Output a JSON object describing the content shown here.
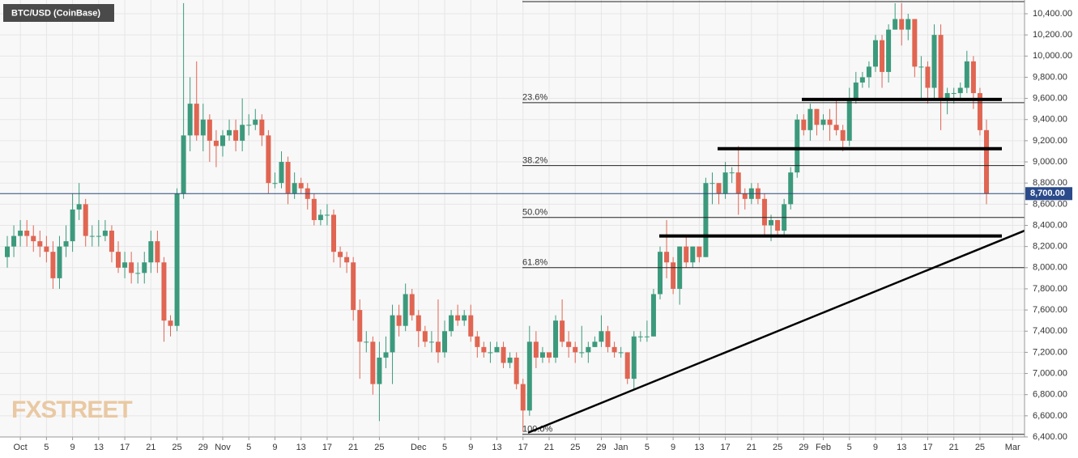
{
  "chart_data": {
    "type": "candlestick",
    "title": "BTC/USD (CoinBase)",
    "watermark": "FXSTREET",
    "up_color": "#3c9a7c",
    "down_color": "#e06552",
    "categories": [
      "Sep 29",
      "Sep 30",
      "Oct 1",
      "Oct 2",
      "Oct 3",
      "Oct 4",
      "Oct 5",
      "Oct 6",
      "Oct 7",
      "Oct 8",
      "Oct 9",
      "Oct 10",
      "Oct 11",
      "Oct 12",
      "Oct 13",
      "Oct 14",
      "Oct 15",
      "Oct 16",
      "Oct 17",
      "Oct 18",
      "Oct 19",
      "Oct 20",
      "Oct 21",
      "Oct 22",
      "Oct 23",
      "Oct 24",
      "Oct 25",
      "Oct 26",
      "Oct 27",
      "Oct 28",
      "Oct 29",
      "Oct 30",
      "Oct 31",
      "Nov 1",
      "Nov 2",
      "Nov 3",
      "Nov 4",
      "Nov 5",
      "Nov 6",
      "Nov 7",
      "Nov 8",
      "Nov 9",
      "Nov 10",
      "Nov 11",
      "Nov 12",
      "Nov 13",
      "Nov 14",
      "Nov 15",
      "Nov 16",
      "Nov 17",
      "Nov 18",
      "Nov 19",
      "Nov 20",
      "Nov 21",
      "Nov 22",
      "Nov 23",
      "Nov 24",
      "Nov 25",
      "Nov 26",
      "Nov 27",
      "Nov 28",
      "Nov 29",
      "Nov 30",
      "Dec 1",
      "Dec 2",
      "Dec 3",
      "Dec 4",
      "Dec 5",
      "Dec 6",
      "Dec 7",
      "Dec 8",
      "Dec 9",
      "Dec 10",
      "Dec 11",
      "Dec 12",
      "Dec 13",
      "Dec 14",
      "Dec 15",
      "Dec 16",
      "Dec 17",
      "Dec 18",
      "Dec 19",
      "Dec 20",
      "Dec 21",
      "Dec 22",
      "Dec 23",
      "Dec 24",
      "Dec 25",
      "Dec 26",
      "Dec 27",
      "Dec 28",
      "Dec 29",
      "Dec 30",
      "Dec 31",
      "Jan 1",
      "Jan 2",
      "Jan 3",
      "Jan 4",
      "Jan 5",
      "Jan 6",
      "Jan 7",
      "Jan 8",
      "Jan 9",
      "Jan 10",
      "Jan 11",
      "Jan 12",
      "Jan 13",
      "Jan 14",
      "Jan 15",
      "Jan 16",
      "Jan 17",
      "Jan 18",
      "Jan 19",
      "Jan 20",
      "Jan 21",
      "Jan 22",
      "Jan 23",
      "Jan 24",
      "Jan 25",
      "Jan 26",
      "Jan 27",
      "Jan 28",
      "Jan 29",
      "Jan 30",
      "Jan 31",
      "Feb 1",
      "Feb 2",
      "Feb 3",
      "Feb 4",
      "Feb 5",
      "Feb 6",
      "Feb 7",
      "Feb 8",
      "Feb 9",
      "Feb 10",
      "Feb 11",
      "Feb 12",
      "Feb 13",
      "Feb 14",
      "Feb 15",
      "Feb 16",
      "Feb 17",
      "Feb 18",
      "Feb 19",
      "Feb 20",
      "Feb 21",
      "Feb 22",
      "Feb 23",
      "Feb 24",
      "Feb 25",
      "Feb 26",
      "Feb 27",
      "Feb 28",
      "Feb 29",
      "Mar 1"
    ],
    "open": [
      8100,
      8200,
      8300,
      8350,
      8300,
      8250,
      8200,
      8150,
      7900,
      8200,
      8250,
      8550,
      8600,
      8300,
      8300,
      8300,
      8350,
      8150,
      8000,
      8050,
      7950,
      7950,
      8050,
      8250,
      8050,
      7500,
      7450,
      8700,
      9250,
      9550,
      9250,
      9400,
      9200,
      9150,
      9250,
      9300,
      9200,
      9350,
      9350,
      9400,
      9250,
      8800,
      8800,
      9000,
      8700,
      8800,
      8750,
      8650,
      8450,
      8500,
      8500,
      8150,
      8100,
      8050,
      7600,
      7300,
      7300,
      6900,
      7150,
      7200,
      7550,
      7450,
      7750,
      7550,
      7400,
      7300,
      7300,
      7200,
      7400,
      7550,
      7500,
      7550,
      7350,
      7250,
      7200,
      7200,
      7250,
      7100,
      7150,
      6900,
      6650,
      7300,
      7150,
      7200,
      7150,
      7500,
      7300,
      7250,
      7200,
      7200,
      7250,
      7300,
      7400,
      7250,
      7200,
      7200,
      6950,
      7350,
      7350,
      7350,
      7750,
      8150,
      8050,
      7800,
      8200,
      8050,
      8200,
      8100,
      8800,
      8800,
      8700,
      8900,
      8900,
      8700,
      8650,
      8750,
      8650,
      8400,
      8450,
      8350,
      8600,
      8900,
      9400,
      9300,
      9500,
      9350,
      9400,
      9350,
      9300,
      9200,
      9600,
      9750,
      9800,
      9900,
      10150,
      9850,
      10250,
      10350,
      10250,
      10350,
      9900,
      9900,
      9700,
      10200,
      9600,
      9650,
      9650,
      9700,
      9950,
      9650,
      9300,
      null,
      null,
      null,
      null
    ],
    "high": [
      8300,
      8400,
      8450,
      8450,
      8400,
      8350,
      8300,
      8250,
      8300,
      8400,
      8700,
      8800,
      8650,
      8400,
      8450,
      8450,
      8400,
      8250,
      8150,
      8150,
      8050,
      8150,
      8350,
      8350,
      8100,
      7550,
      8750,
      10500,
      9800,
      9950,
      9550,
      9450,
      9300,
      9300,
      9400,
      9400,
      9600,
      9450,
      9500,
      9450,
      9300,
      8900,
      9100,
      9050,
      8900,
      8850,
      8800,
      8700,
      8550,
      8600,
      8550,
      8200,
      8150,
      8100,
      7700,
      7400,
      7350,
      7300,
      7350,
      7650,
      7650,
      7850,
      7800,
      7600,
      7450,
      7400,
      7700,
      7500,
      7600,
      7650,
      7600,
      7650,
      7400,
      7300,
      7300,
      7300,
      7300,
      7200,
      7200,
      6950,
      7450,
      7400,
      7250,
      7200,
      7550,
      7700,
      7400,
      7300,
      7450,
      7300,
      7350,
      7550,
      7450,
      7300,
      7250,
      7200,
      7400,
      7400,
      7500,
      7800,
      8200,
      8450,
      8100,
      8200,
      8300,
      8200,
      8200,
      8850,
      8900,
      8800,
      9000,
      8950,
      9150,
      8750,
      8800,
      8800,
      8700,
      8500,
      8450,
      8650,
      8950,
      9450,
      9450,
      9550,
      9500,
      9450,
      9500,
      9600,
      9350,
      9700,
      9850,
      9850,
      9950,
      10200,
      10200,
      10300,
      10500,
      10500,
      10400,
      10350,
      10000,
      9950,
      10300,
      10300,
      9700,
      9700,
      9750,
      10050,
      10000,
      9700,
      9400,
      null,
      null,
      null,
      null
    ],
    "low": [
      8000,
      8100,
      8200,
      8200,
      8150,
      8100,
      8050,
      7800,
      7800,
      8100,
      8150,
      8450,
      8200,
      8200,
      8200,
      8250,
      8050,
      7950,
      7900,
      7850,
      7850,
      7850,
      7950,
      7950,
      7300,
      7350,
      7400,
      8650,
      9100,
      9200,
      9100,
      9000,
      8950,
      9050,
      9200,
      9100,
      9100,
      9250,
      9300,
      9150,
      8700,
      8750,
      8750,
      8600,
      8650,
      8700,
      8550,
      8400,
      8400,
      8400,
      8050,
      8000,
      7950,
      7500,
      6950,
      7200,
      6800,
      6550,
      7050,
      6900,
      7350,
      7400,
      7500,
      7250,
      7250,
      7200,
      7100,
      7150,
      7350,
      7450,
      7450,
      7300,
      7150,
      7150,
      7100,
      7200,
      7050,
      7050,
      6850,
      6450,
      6600,
      7050,
      7100,
      7100,
      7100,
      7250,
      7150,
      7100,
      7150,
      7100,
      7250,
      7250,
      7200,
      7150,
      7150,
      6900,
      6850,
      7300,
      7300,
      7350,
      7700,
      7900,
      7750,
      7650,
      8000,
      8000,
      8050,
      8100,
      8600,
      8600,
      8650,
      8800,
      8500,
      8550,
      8600,
      8600,
      8300,
      8250,
      8300,
      8300,
      8550,
      8850,
      9250,
      9200,
      9250,
      9300,
      9200,
      9250,
      9100,
      9150,
      9550,
      9700,
      9700,
      9850,
      9700,
      9750,
      10250,
      10100,
      10150,
      9800,
      9600,
      9550,
      9600,
      9300,
      9450,
      9550,
      9600,
      9650,
      9500,
      9250,
      8600,
      null,
      null,
      null,
      null
    ],
    "close": [
      8200,
      8300,
      8350,
      8300,
      8250,
      8200,
      8150,
      7900,
      8200,
      8250,
      8550,
      8600,
      8300,
      8300,
      8300,
      8350,
      8150,
      8000,
      8050,
      7950,
      7950,
      8050,
      8250,
      8050,
      7500,
      7450,
      8700,
      9250,
      9550,
      9250,
      9400,
      9200,
      9150,
      9250,
      9300,
      9200,
      9350,
      9350,
      9400,
      9250,
      8800,
      8800,
      9000,
      8700,
      8800,
      8750,
      8650,
      8450,
      8500,
      8500,
      8150,
      8100,
      8050,
      7600,
      7300,
      7300,
      6900,
      7150,
      7200,
      7550,
      7450,
      7750,
      7550,
      7400,
      7300,
      7300,
      7200,
      7400,
      7550,
      7500,
      7550,
      7350,
      7250,
      7200,
      7200,
      7250,
      7100,
      7150,
      6900,
      6650,
      7300,
      7150,
      7200,
      7150,
      7500,
      7300,
      7250,
      7200,
      7200,
      7250,
      7300,
      7400,
      7250,
      7200,
      7200,
      6950,
      7350,
      7350,
      7350,
      7750,
      8150,
      8050,
      7800,
      8200,
      8050,
      8200,
      8100,
      8800,
      8800,
      8700,
      8900,
      8900,
      8700,
      8650,
      8750,
      8650,
      8400,
      8450,
      8350,
      8600,
      8900,
      9400,
      9300,
      9500,
      9350,
      9400,
      9350,
      9300,
      9200,
      9600,
      9750,
      9800,
      9900,
      10150,
      9850,
      10250,
      10350,
      10250,
      10350,
      9900,
      9900,
      9700,
      10200,
      9600,
      9650,
      9650,
      9700,
      9950,
      9650,
      9300,
      8700,
      null,
      null,
      null,
      null
    ],
    "ylim": [
      6400,
      10530
    ],
    "yticks": [
      {
        "value": 6400,
        "label": "6,400.00"
      },
      {
        "value": 6600,
        "label": "6,600.00"
      },
      {
        "value": 6800,
        "label": "6,800.00"
      },
      {
        "value": 7000,
        "label": "7,000.00"
      },
      {
        "value": 7200,
        "label": "7,200.00"
      },
      {
        "value": 7400,
        "label": "7,400.00"
      },
      {
        "value": 7600,
        "label": "7,600.00"
      },
      {
        "value": 7800,
        "label": "7,800.00"
      },
      {
        "value": 8000,
        "label": "8,000.00"
      },
      {
        "value": 8200,
        "label": "8,200.00"
      },
      {
        "value": 8400,
        "label": "8,400.00"
      },
      {
        "value": 8600,
        "label": "8,600.00"
      },
      {
        "value": 8800,
        "label": "8,800.00"
      },
      {
        "value": 9000,
        "label": "9,000.00"
      },
      {
        "value": 9200,
        "label": "9,200.00"
      },
      {
        "value": 9400,
        "label": "9,400.00"
      },
      {
        "value": 9600,
        "label": "9,600.00"
      },
      {
        "value": 9800,
        "label": "9,800.00"
      },
      {
        "value": 10000,
        "label": "10,000.00"
      },
      {
        "value": 10200,
        "label": "10,200.00"
      },
      {
        "value": 10400,
        "label": "10,400.00"
      }
    ],
    "xticks": [
      {
        "value": "Oct 1",
        "label": "Oct"
      },
      {
        "value": "Oct 5",
        "label": "5"
      },
      {
        "value": "Oct 9",
        "label": "9"
      },
      {
        "value": "Oct 13",
        "label": "13"
      },
      {
        "value": "Oct 17",
        "label": "17"
      },
      {
        "value": "Oct 21",
        "label": "21"
      },
      {
        "value": "Oct 25",
        "label": "25"
      },
      {
        "value": "Oct 29",
        "label": "29"
      },
      {
        "value": "Nov 1",
        "label": "Nov"
      },
      {
        "value": "Nov 5",
        "label": "5"
      },
      {
        "value": "Nov 9",
        "label": "9"
      },
      {
        "value": "Nov 13",
        "label": "13"
      },
      {
        "value": "Nov 17",
        "label": "17"
      },
      {
        "value": "Nov 21",
        "label": "21"
      },
      {
        "value": "Nov 25",
        "label": "25"
      },
      {
        "value": "Dec 1",
        "label": "Dec"
      },
      {
        "value": "Dec 5",
        "label": "5"
      },
      {
        "value": "Dec 9",
        "label": "9"
      },
      {
        "value": "Dec 13",
        "label": "13"
      },
      {
        "value": "Dec 17",
        "label": "17"
      },
      {
        "value": "Dec 21",
        "label": "21"
      },
      {
        "value": "Dec 25",
        "label": "25"
      },
      {
        "value": "Dec 29",
        "label": "29"
      },
      {
        "value": "Jan 1",
        "label": "Jan"
      },
      {
        "value": "Jan 5",
        "label": "5"
      },
      {
        "value": "Jan 9",
        "label": "9"
      },
      {
        "value": "Jan 13",
        "label": "13"
      },
      {
        "value": "Jan 17",
        "label": "17"
      },
      {
        "value": "Jan 21",
        "label": "21"
      },
      {
        "value": "Jan 25",
        "label": "25"
      },
      {
        "value": "Jan 29",
        "label": "29"
      },
      {
        "value": "Feb 1",
        "label": "Feb"
      },
      {
        "value": "Feb 5",
        "label": "5"
      },
      {
        "value": "Feb 9",
        "label": "9"
      },
      {
        "value": "Feb 13",
        "label": "13"
      },
      {
        "value": "Feb 17",
        "label": "17"
      },
      {
        "value": "Feb 21",
        "label": "21"
      },
      {
        "value": "Feb 25",
        "label": "25"
      },
      {
        "value": "Mar 1",
        "label": "Mar"
      }
    ],
    "grid": true,
    "fib_top": 10515,
    "fib_levels": [
      {
        "value": 9560,
        "label": "23.6%"
      },
      {
        "value": 8965,
        "label": "38.2%"
      },
      {
        "value": 8475,
        "label": "50.0%"
      },
      {
        "value": 8000,
        "label": "61.8%"
      },
      {
        "value": 6425,
        "label": "100.0%"
      }
    ],
    "support_levels": [
      9590,
      9125,
      8300
    ],
    "trendline": [
      6440,
      8350
    ],
    "last_price": {
      "value": 8700,
      "label": "8,700.00"
    }
  }
}
